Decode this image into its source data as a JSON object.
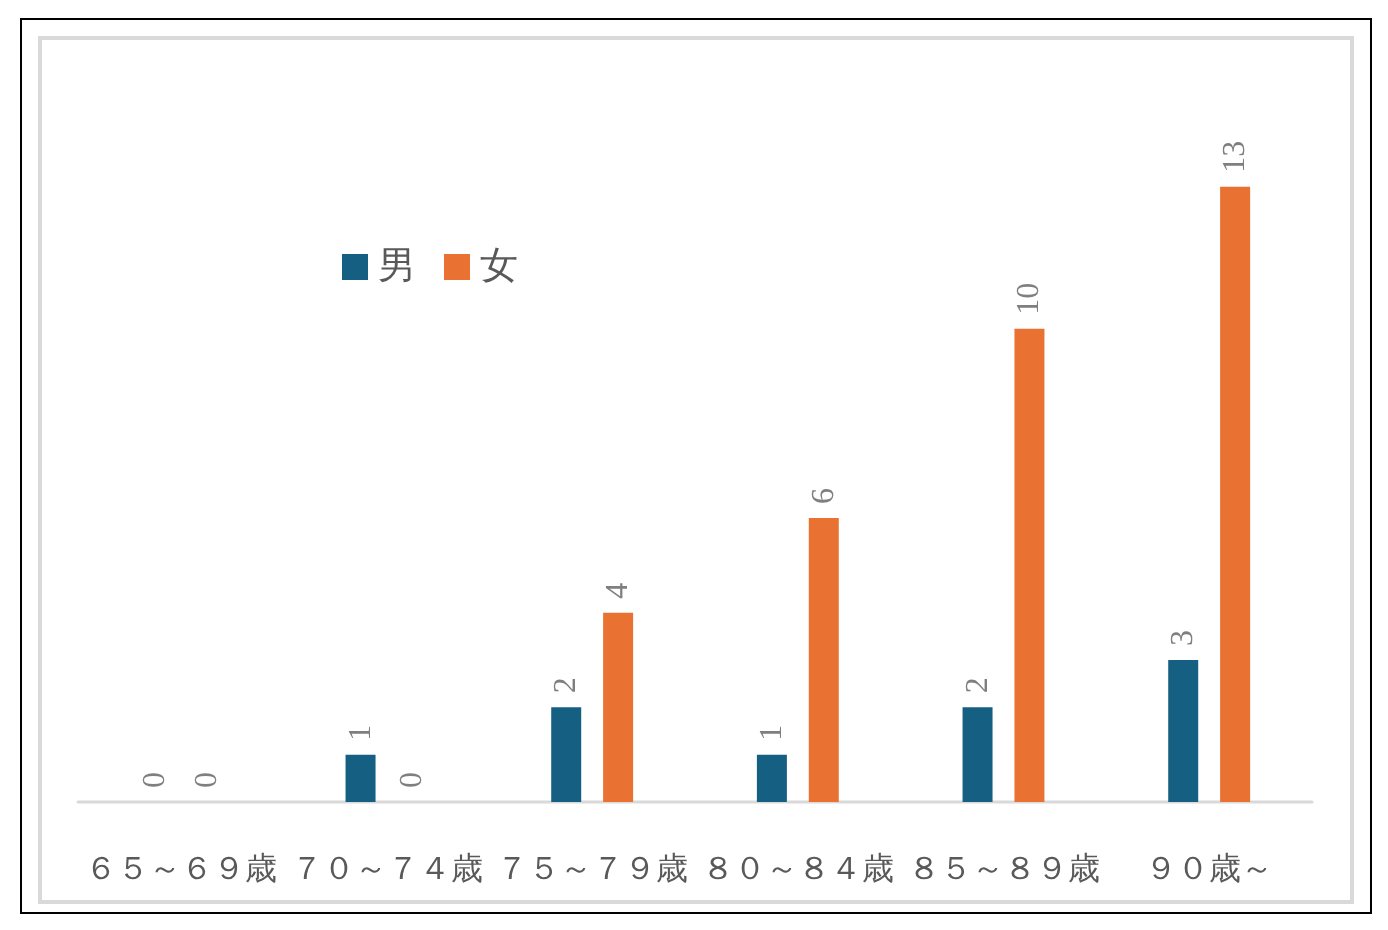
{
  "chart_data": {
    "type": "bar",
    "categories": [
      "６５～６９歳",
      "７０～７４歳",
      "７５～７９歳",
      "８０～８４歳",
      "８５～８９歳",
      "９０歳～"
    ],
    "series": [
      {
        "name": "男",
        "color": "#156082",
        "values": [
          0,
          1,
          2,
          1,
          2,
          3
        ]
      },
      {
        "name": "女",
        "color": "#e97132",
        "values": [
          0,
          0,
          4,
          6,
          10,
          13
        ]
      }
    ],
    "data_labels": true,
    "legend": "top left",
    "tick_labels": "x"
  }
}
